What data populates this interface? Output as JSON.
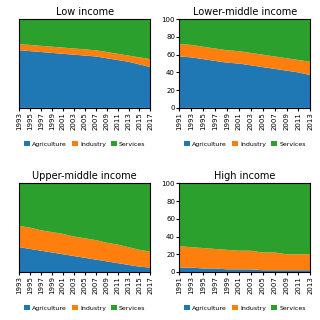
{
  "chart_data": [
    {
      "type": "area",
      "stacked": true,
      "title": "Low income",
      "x": [
        1993,
        1995,
        1997,
        1999,
        2001,
        2003,
        2005,
        2007,
        2009,
        2011,
        2013,
        2015,
        2017
      ],
      "series": [
        {
          "name": "Agriculture",
          "values": [
            65,
            64,
            63,
            62,
            61,
            60,
            59,
            58,
            56,
            54,
            52,
            49,
            46
          ]
        },
        {
          "name": "Industry",
          "values": [
            7,
            7,
            7,
            7,
            7,
            7,
            7,
            7,
            7,
            7,
            7,
            8,
            9
          ]
        },
        {
          "name": "Services",
          "values": [
            28,
            29,
            30,
            31,
            32,
            33,
            34,
            35,
            37,
            39,
            41,
            43,
            45
          ]
        }
      ],
      "xlim": [
        1993,
        2017
      ],
      "ylim": [
        0,
        100
      ],
      "xticks": [
        1993,
        1995,
        1997,
        1999,
        2001,
        2003,
        2005,
        2007,
        2009,
        2011,
        2013,
        2015,
        2017
      ],
      "tick_labels": "x",
      "legend": "below"
    },
    {
      "type": "area",
      "stacked": true,
      "title": "Lower-middle income",
      "x": [
        1991,
        1993,
        1995,
        1997,
        1999,
        2001,
        2003,
        2005,
        2007,
        2009,
        2011,
        2013
      ],
      "series": [
        {
          "name": "Agriculture",
          "values": [
            58,
            57,
            55,
            53,
            51,
            50,
            48,
            46,
            44,
            42,
            40,
            37
          ]
        },
        {
          "name": "Industry",
          "values": [
            14,
            14,
            14,
            14,
            14,
            14,
            14,
            14,
            14,
            14,
            14,
            15
          ]
        },
        {
          "name": "Services",
          "values": [
            28,
            29,
            31,
            33,
            35,
            36,
            38,
            40,
            42,
            44,
            46,
            48
          ]
        }
      ],
      "xlim": [
        1991,
        2013
      ],
      "ylim": [
        0,
        100
      ],
      "xticks": [
        1991,
        1993,
        1995,
        1997,
        1999,
        2001,
        2003,
        2005,
        2007,
        2009,
        2011,
        2013
      ],
      "yticks": [
        0,
        20,
        40,
        60,
        80,
        100
      ],
      "legend": "below"
    },
    {
      "type": "area",
      "stacked": true,
      "title": "Upper-middle income",
      "x": [
        1993,
        1995,
        1997,
        1999,
        2001,
        2003,
        2005,
        2007,
        2009,
        2011,
        2013,
        2015,
        2017
      ],
      "series": [
        {
          "name": "Agriculture",
          "values": [
            28,
            26,
            24,
            22,
            20,
            18,
            16,
            14,
            12,
            10,
            8,
            6,
            5
          ]
        },
        {
          "name": "Industry",
          "values": [
            24,
            24,
            23,
            23,
            23,
            22,
            22,
            22,
            21,
            21,
            20,
            19,
            18
          ]
        },
        {
          "name": "Services",
          "values": [
            48,
            50,
            53,
            55,
            57,
            60,
            62,
            64,
            67,
            69,
            72,
            75,
            77
          ]
        }
      ],
      "xlim": [
        1993,
        2017
      ],
      "ylim": [
        0,
        100
      ],
      "xticks": [
        1993,
        1995,
        1997,
        1999,
        2001,
        2003,
        2005,
        2007,
        2009,
        2011,
        2013,
        2015,
        2017
      ],
      "tick_labels": "x",
      "legend": "below"
    },
    {
      "type": "area",
      "stacked": true,
      "title": "High income",
      "x": [
        1991,
        1993,
        1995,
        1997,
        1999,
        2001,
        2003,
        2005,
        2007,
        2009,
        2011,
        2013
      ],
      "series": [
        {
          "name": "Agriculture",
          "values": [
            5,
            5,
            4,
            4,
            3,
            3,
            3,
            2,
            2,
            2,
            2,
            2
          ]
        },
        {
          "name": "Industry",
          "values": [
            24,
            23,
            23,
            22,
            22,
            21,
            21,
            20,
            20,
            18,
            18,
            18
          ]
        },
        {
          "name": "Services",
          "values": [
            71,
            72,
            73,
            74,
            75,
            76,
            76,
            78,
            78,
            80,
            80,
            80
          ]
        }
      ],
      "xlim": [
        1991,
        2013
      ],
      "ylim": [
        0,
        100
      ],
      "xticks": [
        1991,
        1993,
        1995,
        1997,
        1999,
        2001,
        2003,
        2005,
        2007,
        2009,
        2011,
        2013
      ],
      "yticks": [
        0,
        20,
        40,
        60,
        80,
        100
      ],
      "legend": "below"
    }
  ]
}
